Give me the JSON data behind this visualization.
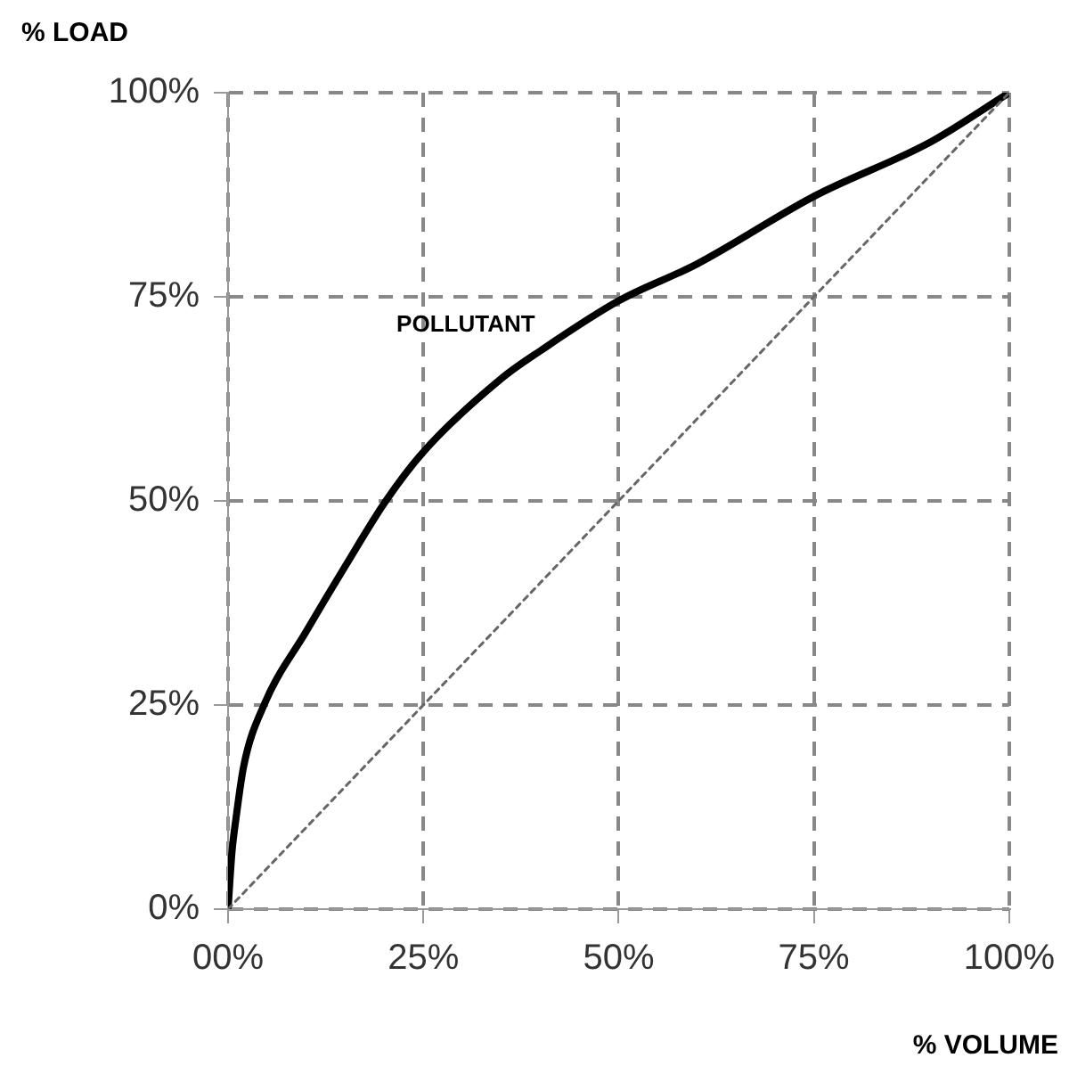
{
  "chart_data": {
    "type": "line",
    "xlabel": "% VOLUME",
    "ylabel": "% LOAD",
    "series": [
      {
        "name": "POLLUTANT",
        "color": "#000000",
        "line_style": "solid",
        "x": [
          0,
          0.5,
          1,
          2,
          4.6,
          10,
          15,
          20.2,
          25,
          35,
          40,
          50,
          60,
          75,
          90,
          100
        ],
        "values": [
          0,
          7,
          11,
          17.5,
          25,
          34,
          42,
          50,
          56,
          65,
          68.4,
          74.5,
          79,
          87.3,
          94,
          100
        ]
      },
      {
        "color": "#666666",
        "line_style": "dotted",
        "x": [
          0,
          100
        ],
        "values": [
          0,
          100
        ]
      }
    ],
    "xlim": [
      0,
      100
    ],
    "ylim": [
      0,
      100
    ],
    "xticks": [
      {
        "value": 0,
        "label": "00%"
      },
      {
        "value": 25,
        "label": "25%"
      },
      {
        "value": 50,
        "label": "50%"
      },
      {
        "value": 75,
        "label": "75%"
      },
      {
        "value": 100,
        "label": "100%"
      }
    ],
    "yticks": [
      {
        "value": 0,
        "label": "0%"
      },
      {
        "value": 25,
        "label": "25%"
      },
      {
        "value": 50,
        "label": "50%"
      },
      {
        "value": 75,
        "label": "75%"
      },
      {
        "value": 100,
        "label": "100%"
      }
    ],
    "grid": true,
    "legend": false,
    "marker": "none"
  }
}
